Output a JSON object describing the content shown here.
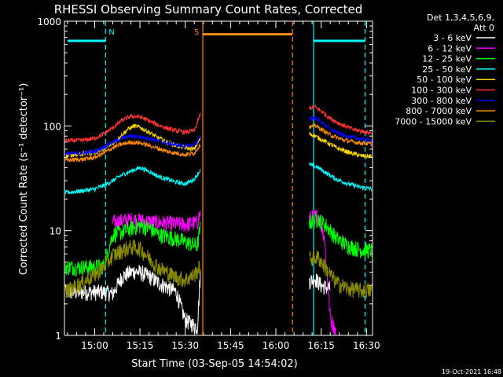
{
  "chart_data": {
    "type": "line",
    "title": "RHESSI Observing Summary Count Rates, Corrected",
    "xlabel": "Start Time (03-Sep-05 14:54:02)",
    "ylabel": "Corrected Count Rate (s⁻¹ detector⁻¹)",
    "yscale": "log",
    "ylim": [
      1,
      1000
    ],
    "yticks": [
      {
        "value": 1,
        "label": "1"
      },
      {
        "value": 10,
        "label": "10"
      },
      {
        "value": 100,
        "label": "100"
      },
      {
        "value": 1000,
        "label": "1000"
      }
    ],
    "xlim": [
      -4.0,
      98.0
    ],
    "xticks": [
      {
        "value": 6,
        "label": "15:00"
      },
      {
        "value": 21,
        "label": "15:15"
      },
      {
        "value": 36,
        "label": "15:30"
      },
      {
        "value": 51,
        "label": "15:45"
      },
      {
        "value": 66,
        "label": "16:00"
      },
      {
        "value": 81,
        "label": "16:15"
      },
      {
        "value": 96,
        "label": "16:30"
      }
    ],
    "legend": {
      "header_line1": "Det 1,3,4,5,6,9,",
      "header_line2": "Att 0",
      "position": "right"
    },
    "series": [
      {
        "name": "3 - 6 keV",
        "color": "#ffffff",
        "points": [
          [
            -4,
            2.6
          ],
          [
            2,
            2.6
          ],
          [
            9,
            2.6
          ],
          [
            12,
            2.5
          ],
          [
            15,
            3.6
          ],
          [
            17,
            3.9
          ],
          [
            19,
            4.1
          ],
          [
            21,
            4.0
          ],
          [
            24,
            3.7
          ],
          [
            27,
            3.2
          ],
          [
            30,
            2.9
          ],
          [
            33,
            2.6
          ],
          [
            36,
            1.4
          ],
          [
            38,
            1.3
          ],
          [
            40,
            1.2
          ],
          [
            41,
            3.9
          ],
          [
            77,
            3.3
          ],
          [
            79,
            3.5
          ],
          [
            81,
            3.0
          ],
          [
            84,
            2.8
          ],
          [
            98,
            2.8
          ]
        ]
      },
      {
        "name": "6 - 12 keV",
        "color": "#ff00ff",
        "points": [
          [
            12,
            12
          ],
          [
            15,
            12.5
          ],
          [
            19,
            12.8
          ],
          [
            24,
            12.2
          ],
          [
            30,
            11.8
          ],
          [
            36,
            11.5
          ],
          [
            40,
            12
          ],
          [
            41,
            15
          ],
          [
            77,
            13
          ],
          [
            80,
            14
          ],
          [
            82,
            9
          ],
          [
            84,
            1.5
          ],
          [
            86,
            1.05
          ],
          [
            98,
            1.05
          ]
        ]
      },
      {
        "name": "12 - 25 keV",
        "color": "#00ff00",
        "points": [
          [
            -4,
            4.5
          ],
          [
            4,
            4.5
          ],
          [
            9,
            4.6
          ],
          [
            12,
            9.2
          ],
          [
            15,
            9.7
          ],
          [
            18,
            10.5
          ],
          [
            21,
            11.2
          ],
          [
            24,
            10.6
          ],
          [
            27,
            9.3
          ],
          [
            30,
            8.8
          ],
          [
            33,
            8.4
          ],
          [
            36,
            7.8
          ],
          [
            40,
            7.2
          ],
          [
            41,
            11
          ],
          [
            77,
            12
          ],
          [
            80,
            13
          ],
          [
            83,
            11
          ],
          [
            86,
            8.5
          ],
          [
            90,
            7.2
          ],
          [
            94,
            6.6
          ],
          [
            98,
            6.5
          ]
        ]
      },
      {
        "name": "25 - 50 keV",
        "color": "#00ffff",
        "points": [
          [
            -4,
            23
          ],
          [
            2,
            24
          ],
          [
            6,
            25
          ],
          [
            9,
            27
          ],
          [
            12,
            30
          ],
          [
            15,
            34
          ],
          [
            18,
            37
          ],
          [
            21,
            40
          ],
          [
            24,
            37
          ],
          [
            27,
            33
          ],
          [
            30,
            31
          ],
          [
            33,
            29
          ],
          [
            36,
            28
          ],
          [
            39,
            31
          ],
          [
            41,
            38
          ],
          [
            77,
            43
          ],
          [
            80,
            40
          ],
          [
            83,
            35
          ],
          [
            86,
            31
          ],
          [
            90,
            28
          ],
          [
            94,
            26
          ],
          [
            98,
            25
          ]
        ]
      },
      {
        "name": "50 - 100 keV",
        "color": "#ffd700",
        "points": [
          [
            -4,
            52
          ],
          [
            2,
            54
          ],
          [
            6,
            56
          ],
          [
            9,
            60
          ],
          [
            12,
            68
          ],
          [
            15,
            82
          ],
          [
            17,
            93
          ],
          [
            19,
            100
          ],
          [
            21,
            97
          ],
          [
            24,
            87
          ],
          [
            27,
            77
          ],
          [
            30,
            70
          ],
          [
            33,
            65
          ],
          [
            36,
            62
          ],
          [
            39,
            60
          ],
          [
            41,
            76
          ],
          [
            77,
            85
          ],
          [
            79,
            80
          ],
          [
            82,
            72
          ],
          [
            86,
            62
          ],
          [
            90,
            56
          ],
          [
            94,
            52
          ],
          [
            98,
            51
          ]
        ]
      },
      {
        "name": "100 - 300 keV",
        "color": "#ff3333",
        "points": [
          [
            -4,
            72
          ],
          [
            2,
            73
          ],
          [
            6,
            76
          ],
          [
            9,
            84
          ],
          [
            12,
            96
          ],
          [
            15,
            113
          ],
          [
            18,
            124
          ],
          [
            21,
            122
          ],
          [
            24,
            112
          ],
          [
            27,
            102
          ],
          [
            30,
            95
          ],
          [
            33,
            90
          ],
          [
            36,
            87
          ],
          [
            39,
            90
          ],
          [
            41,
            130
          ],
          [
            77,
            147
          ],
          [
            79,
            152
          ],
          [
            81,
            139
          ],
          [
            84,
            118
          ],
          [
            88,
            102
          ],
          [
            92,
            92
          ],
          [
            96,
            87
          ],
          [
            98,
            86
          ]
        ]
      },
      {
        "name": "300 - 800 keV",
        "color": "#0000ff",
        "points": [
          [
            -4,
            54
          ],
          [
            2,
            55
          ],
          [
            6,
            57
          ],
          [
            9,
            63
          ],
          [
            12,
            70
          ],
          [
            15,
            76
          ],
          [
            18,
            80
          ],
          [
            21,
            79
          ],
          [
            24,
            76
          ],
          [
            27,
            72
          ],
          [
            30,
            68
          ],
          [
            33,
            66
          ],
          [
            36,
            64
          ],
          [
            39,
            66
          ],
          [
            41,
            79
          ],
          [
            77,
            117
          ],
          [
            79,
            120
          ],
          [
            81,
            110
          ],
          [
            84,
            93
          ],
          [
            88,
            82
          ],
          [
            92,
            77
          ],
          [
            96,
            74
          ],
          [
            98,
            73
          ]
        ]
      },
      {
        "name": "800 - 7000 keV",
        "color": "#ff8c00",
        "points": [
          [
            -4,
            47
          ],
          [
            2,
            48
          ],
          [
            6,
            50
          ],
          [
            9,
            55
          ],
          [
            12,
            62
          ],
          [
            15,
            67
          ],
          [
            18,
            70
          ],
          [
            21,
            69
          ],
          [
            24,
            65
          ],
          [
            27,
            61
          ],
          [
            30,
            57
          ],
          [
            33,
            55
          ],
          [
            36,
            53
          ],
          [
            39,
            55
          ],
          [
            41,
            67
          ],
          [
            77,
            97
          ],
          [
            79,
            101
          ],
          [
            81,
            93
          ],
          [
            84,
            82
          ],
          [
            88,
            74
          ],
          [
            92,
            70
          ],
          [
            96,
            68
          ],
          [
            98,
            67
          ]
        ]
      },
      {
        "name": "7000 - 15000 keV",
        "color": "#8b8b00",
        "points": [
          [
            -4,
            2.6
          ],
          [
            2,
            3.2
          ],
          [
            6,
            3.8
          ],
          [
            9,
            4.5
          ],
          [
            12,
            5.8
          ],
          [
            15,
            6.5
          ],
          [
            18,
            7
          ],
          [
            21,
            6.8
          ],
          [
            24,
            5.5
          ],
          [
            27,
            4.5
          ],
          [
            30,
            4
          ],
          [
            33,
            3.6
          ],
          [
            36,
            3.4
          ],
          [
            39,
            3.8
          ],
          [
            41,
            4.6
          ],
          [
            77,
            5.4
          ],
          [
            80,
            5.6
          ],
          [
            83,
            4.2
          ],
          [
            86,
            3.2
          ],
          [
            90,
            2.8
          ],
          [
            94,
            2.7
          ],
          [
            98,
            2.7
          ]
        ]
      }
    ],
    "annotations": [
      {
        "label": "N",
        "start": -3,
        "end": 9.6,
        "level": 650,
        "color": "#00ffff"
      },
      {
        "label": "S",
        "start": 41.8,
        "end": 71.5,
        "level": 750,
        "color": "#ff8c00"
      },
      {
        "label": "",
        "start": 78.5,
        "end": 95.5,
        "level": 650,
        "color": "#00ffff"
      }
    ],
    "vlines": [
      {
        "x": 9.6,
        "color": "#00ffff",
        "dashed": true
      },
      {
        "x": 41.8,
        "color": "#ff8c00",
        "dashed": false
      },
      {
        "x": 71.5,
        "color": "#ff8c00",
        "dashed": true
      },
      {
        "x": 78.5,
        "color": "#00ffff",
        "dashed": false
      },
      {
        "x": 95.5,
        "color": "#00ffff",
        "dashed": true
      }
    ],
    "footer_text": "19-Oct-2021 16:48"
  }
}
